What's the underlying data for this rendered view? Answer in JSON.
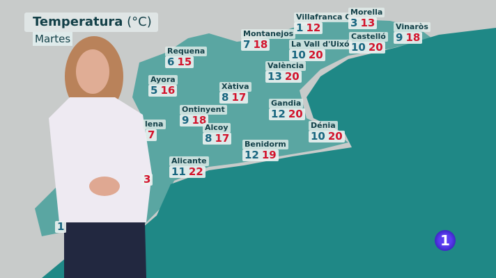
{
  "header": {
    "title": "Temperatura",
    "unit": "(°C)",
    "day": "Martes"
  },
  "cities": [
    {
      "name": "Villafranca C.",
      "min": "1",
      "max": "12"
    },
    {
      "name": "Morella",
      "min": "3",
      "max": "13"
    },
    {
      "name": "Vinaròs",
      "min": "9",
      "max": "18"
    },
    {
      "name": "Montanejos",
      "min": "7",
      "max": "18"
    },
    {
      "name": "La Vall d'Uixó",
      "min": "10",
      "max": "20"
    },
    {
      "name": "Castelló",
      "min": "10",
      "max": "20"
    },
    {
      "name": "Requena",
      "min": "6",
      "max": "15"
    },
    {
      "name": "València",
      "min": "13",
      "max": "20"
    },
    {
      "name": "Ayora",
      "min": "5",
      "max": "16"
    },
    {
      "name": "Xàtiva",
      "min": "8",
      "max": "17"
    },
    {
      "name": "Ontinyent",
      "min": "9",
      "max": "18"
    },
    {
      "name": "Gandia",
      "min": "12",
      "max": "20"
    },
    {
      "name": "Alcoy",
      "min": "8",
      "max": "17"
    },
    {
      "name": "Dénia",
      "min": "10",
      "max": "20"
    },
    {
      "name": "Benidorm",
      "min": "12",
      "max": "19"
    },
    {
      "name": "Alicante",
      "min": "11",
      "max": "22"
    }
  ],
  "partial": {
    "villena_name": "lena",
    "villena_max": "7",
    "orihuela_max": "3",
    "south_min": "1"
  },
  "colors": {
    "sea": "#1f8886",
    "region": "#4e9f9b",
    "land": "#c8cbca",
    "min": "#18657f",
    "max": "#d3142c"
  },
  "logo": "1"
}
